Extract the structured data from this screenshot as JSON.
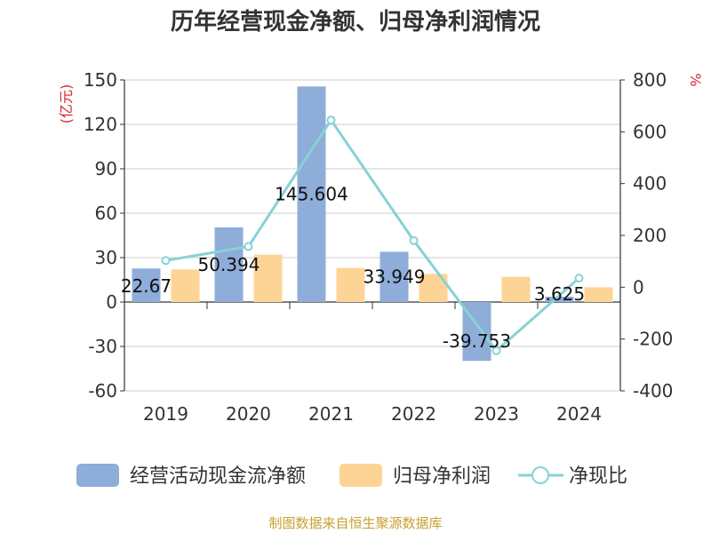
{
  "chart_data": {
    "type": "bar",
    "title": "历年经营现金净额、归母净利润情况",
    "categories": [
      "2019",
      "2020",
      "2021",
      "2022",
      "2023",
      "2024"
    ],
    "series": [
      {
        "name": "经营活动现金流净额",
        "type": "bar",
        "axis": "left",
        "color": "#8eadd9",
        "values": [
          22.67,
          50.394,
          145.604,
          33.949,
          -39.753,
          3.625
        ],
        "labels": [
          "22.67",
          "50.394",
          "145.604",
          "33.949",
          "-39.753",
          "3.625"
        ]
      },
      {
        "name": "归母净利润",
        "type": "bar",
        "axis": "left",
        "color": "#fdd496",
        "values": [
          22,
          32,
          23,
          19,
          17,
          10
        ]
      },
      {
        "name": "净现比",
        "type": "line",
        "axis": "right",
        "color": "#87d2d5",
        "values": [
          103,
          157,
          645,
          180,
          -245,
          35
        ]
      }
    ],
    "y_left": {
      "label": "(亿元)",
      "min": -60,
      "max": 150,
      "ticks": [
        -60,
        -30,
        0,
        30,
        60,
        90,
        120,
        150
      ]
    },
    "y_right": {
      "label": "%",
      "min": -400,
      "max": 800,
      "ticks": [
        -400,
        -200,
        0,
        200,
        400,
        600,
        800
      ]
    },
    "legend": [
      "经营活动现金流净额",
      "归母净利润",
      "净现比"
    ],
    "legend_position": "bottom"
  },
  "source": "制图数据来自恒生聚源数据库"
}
